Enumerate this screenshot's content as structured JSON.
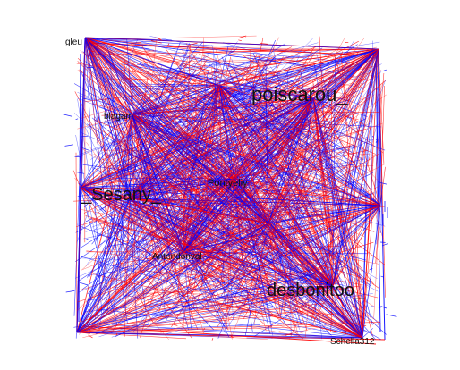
{
  "graph": {
    "edge_colors": [
      "#ff0000",
      "#0000ff"
    ],
    "background": "#ffffff",
    "label_color": "#111111",
    "hubs": [
      {
        "id": "gleu",
        "label": "gleu"
      },
      {
        "id": "poiscarou",
        "label": "poiscarou_"
      },
      {
        "id": "blagam",
        "label": "blagam"
      },
      {
        "id": "sesany",
        "label": "_Sesany_"
      },
      {
        "id": "center",
        "label": "Pontyeliy"
      },
      {
        "id": "lower",
        "label": "Antendonval"
      },
      {
        "id": "desbonitoo",
        "label": "desbonitoo_"
      },
      {
        "id": "schella",
        "label": "Schella312"
      }
    ]
  }
}
